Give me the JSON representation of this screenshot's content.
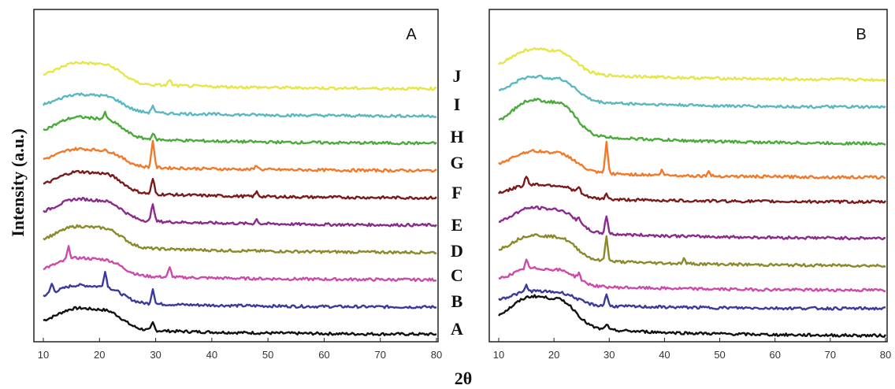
{
  "chart_data": [
    {
      "type": "line",
      "panel_label": "A",
      "xlabel": "2θ",
      "ylabel": "Intensity (a.u.)",
      "xlim": [
        10,
        80
      ],
      "xticks": [
        "10",
        "20",
        "30",
        "40",
        "50",
        "60",
        "70",
        "80"
      ],
      "series": [
        {
          "color": "#111111",
          "offset": 0,
          "hump": 6,
          "peaks": [
            [
              29.5,
              2.5
            ]
          ]
        },
        {
          "color": "#3a3a9a",
          "offset": 9,
          "hump": 5,
          "peaks": [
            [
              11.5,
              3
            ],
            [
              21,
              5
            ],
            [
              29.5,
              5
            ]
          ]
        },
        {
          "color": "#cc4aaa",
          "offset": 18,
          "hump": 5,
          "peaks": [
            [
              14.5,
              4
            ],
            [
              32.5,
              3
            ]
          ]
        },
        {
          "color": "#8a8a2a",
          "offset": 27,
          "hump": 6,
          "peaks": []
        },
        {
          "color": "#8a2a8a",
          "offset": 36,
          "hump": 6,
          "peaks": [
            [
              29.5,
              6
            ],
            [
              48,
              1.5
            ]
          ]
        },
        {
          "color": "#7a1a1a",
          "offset": 45,
          "hump": 6,
          "peaks": [
            [
              29.5,
              5
            ],
            [
              48,
              1.5
            ]
          ]
        },
        {
          "color": "#f07a2a",
          "offset": 54,
          "hump": 5,
          "peaks": [
            [
              29.5,
              9
            ],
            [
              48,
              1.5
            ]
          ]
        },
        {
          "color": "#4aaa3a",
          "offset": 63,
          "hump": 6,
          "peaks": [
            [
              21,
              2
            ],
            [
              29.5,
              2
            ]
          ]
        },
        {
          "color": "#5ab8c0",
          "offset": 72,
          "hump": 5,
          "peaks": [
            [
              29.5,
              2.5
            ]
          ]
        },
        {
          "color": "#e6e64a",
          "offset": 81,
          "hump": 6,
          "peaks": [
            [
              32.5,
              2
            ]
          ]
        }
      ]
    },
    {
      "type": "line",
      "panel_label": "B",
      "xlabel": "2θ",
      "ylabel": "Intensity (a.u.)",
      "xlim": [
        10,
        80
      ],
      "xticks": [
        "10",
        "20",
        "30",
        "40",
        "50",
        "60",
        "70",
        "80"
      ],
      "series": [
        {
          "color": "#111111",
          "offset": 0,
          "hump": 9,
          "peaks": [
            [
              29.5,
              2
            ]
          ]
        },
        {
          "color": "#3a3a9a",
          "offset": 9,
          "hump": 4,
          "peaks": [
            [
              15,
              2
            ],
            [
              29.5,
              4
            ]
          ]
        },
        {
          "color": "#cc4aaa",
          "offset": 15,
          "hump": 5,
          "peaks": [
            [
              15,
              3
            ],
            [
              24.5,
              2
            ]
          ]
        },
        {
          "color": "#8a8a2a",
          "offset": 23,
          "hump": 7,
          "peaks": [
            [
              29.5,
              8
            ],
            [
              43.5,
              1.5
            ]
          ]
        },
        {
          "color": "#8a2a8a",
          "offset": 32,
          "hump": 7,
          "peaks": [
            [
              29.5,
              6
            ],
            [
              24.5,
              2
            ]
          ]
        },
        {
          "color": "#7a1a1a",
          "offset": 44,
          "hump": 4,
          "peaks": [
            [
              15,
              3
            ],
            [
              24.5,
              2
            ],
            [
              29.5,
              2
            ]
          ]
        },
        {
          "color": "#f07a2a",
          "offset": 52,
          "hump": 6,
          "peaks": [
            [
              29.5,
              10
            ],
            [
              39.5,
              1.5
            ],
            [
              48,
              1.5
            ]
          ]
        },
        {
          "color": "#4aaa3a",
          "offset": 63,
          "hump": 10,
          "peaks": []
        },
        {
          "color": "#5ab8c0",
          "offset": 75,
          "hump": 7,
          "peaks": []
        },
        {
          "color": "#e6e64a",
          "offset": 84,
          "hump": 7,
          "peaks": []
        }
      ]
    }
  ],
  "trace_labels": [
    "J",
    "I",
    "H",
    "G",
    "F",
    "E",
    "D",
    "C",
    "B",
    "A"
  ]
}
